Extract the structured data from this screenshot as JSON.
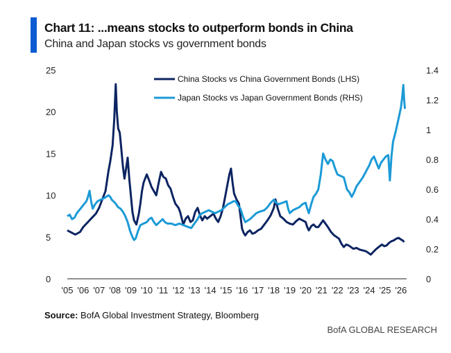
{
  "header": {
    "title": "Chart 11: ...means stocks to outperform bonds in China",
    "subtitle": "China and Japan stocks vs government bonds",
    "accent_color": "#0b5bd3"
  },
  "footer": {
    "source_label": "Source:",
    "source_text": " BofA Global Investment Strategy, Bloomberg",
    "brand": "BofA GLOBAL RESEARCH"
  },
  "chart_data": {
    "type": "line",
    "title": "Chart 11: ...means stocks to outperform bonds in China",
    "subtitle": "China and Japan stocks vs government bonds",
    "xlabel": "",
    "ylabel_left": "",
    "ylabel_right": "",
    "x_ticks": [
      "'05",
      "'06",
      "'07",
      "'08",
      "'09",
      "'10",
      "'11",
      "'12",
      "'13",
      "'14",
      "'15",
      "'16",
      "'17",
      "'18",
      "'19",
      "'20",
      "'21",
      "'22",
      "'23",
      "'24",
      "'25",
      "'26"
    ],
    "x_range": [
      2005,
      2026.6
    ],
    "ylim_left": [
      0,
      25
    ],
    "yticks_left": [
      "0",
      "5",
      "10",
      "15",
      "20",
      "25"
    ],
    "ylim_right": [
      0,
      1.4
    ],
    "yticks_right": [
      "0",
      "0.2",
      "0.4",
      "0.6",
      "0.8",
      "1",
      "1.2",
      "1.4"
    ],
    "grid": false,
    "legend_position": "top-center",
    "series": [
      {
        "name": "China Stocks vs China Government Bonds (LHS)",
        "axis": "left",
        "color": "#0c2461",
        "points": [
          [
            2005,
            5.8
          ],
          [
            2005.3,
            5.5
          ],
          [
            2005.5,
            5.3
          ],
          [
            2005.8,
            5.6
          ],
          [
            2006,
            6.2
          ],
          [
            2006.3,
            6.8
          ],
          [
            2006.5,
            7.2
          ],
          [
            2006.8,
            7.8
          ],
          [
            2007,
            8.5
          ],
          [
            2007.2,
            9.5
          ],
          [
            2007.4,
            10.5
          ],
          [
            2007.6,
            13
          ],
          [
            2007.7,
            14
          ],
          [
            2007.85,
            16
          ],
          [
            2007.95,
            19
          ],
          [
            2008.05,
            23.3
          ],
          [
            2008.12,
            20
          ],
          [
            2008.2,
            18
          ],
          [
            2008.3,
            17.5
          ],
          [
            2008.4,
            15.5
          ],
          [
            2008.5,
            13.5
          ],
          [
            2008.6,
            12
          ],
          [
            2008.7,
            13.2
          ],
          [
            2008.8,
            14.5
          ],
          [
            2008.9,
            12
          ],
          [
            2009.0,
            10
          ],
          [
            2009.1,
            8
          ],
          [
            2009.2,
            7
          ],
          [
            2009.35,
            6.5
          ],
          [
            2009.5,
            7.8
          ],
          [
            2009.6,
            9
          ],
          [
            2009.7,
            10.5
          ],
          [
            2009.8,
            11.5
          ],
          [
            2010.0,
            12.5
          ],
          [
            2010.15,
            11.8
          ],
          [
            2010.3,
            11
          ],
          [
            2010.45,
            10.5
          ],
          [
            2010.6,
            10
          ],
          [
            2010.75,
            11.5
          ],
          [
            2010.9,
            12.8
          ],
          [
            2011.05,
            12.2
          ],
          [
            2011.2,
            12
          ],
          [
            2011.35,
            11.2
          ],
          [
            2011.5,
            10.8
          ],
          [
            2011.65,
            9.8
          ],
          [
            2011.8,
            9
          ],
          [
            2012.0,
            8.5
          ],
          [
            2012.1,
            8
          ],
          [
            2012.3,
            6.5
          ],
          [
            2012.45,
            7.2
          ],
          [
            2012.6,
            7.5
          ],
          [
            2012.75,
            6.8
          ],
          [
            2012.9,
            7
          ],
          [
            2013.05,
            8
          ],
          [
            2013.2,
            8.5
          ],
          [
            2013.35,
            7.6
          ],
          [
            2013.5,
            7
          ],
          [
            2013.65,
            7.5
          ],
          [
            2013.8,
            7.2
          ],
          [
            2014.0,
            7.5
          ],
          [
            2014.2,
            7.8
          ],
          [
            2014.35,
            7.2
          ],
          [
            2014.5,
            6.8
          ],
          [
            2014.65,
            7.5
          ],
          [
            2014.8,
            8.5
          ],
          [
            2014.95,
            10
          ],
          [
            2015.1,
            11.5
          ],
          [
            2015.2,
            12.5
          ],
          [
            2015.3,
            13.2
          ],
          [
            2015.4,
            11.5
          ],
          [
            2015.5,
            10.2
          ],
          [
            2015.65,
            9.5
          ],
          [
            2015.8,
            9
          ],
          [
            2015.9,
            7.5
          ],
          [
            2016.0,
            6
          ],
          [
            2016.1,
            5.5
          ],
          [
            2016.2,
            5.2
          ],
          [
            2016.35,
            5.6
          ],
          [
            2016.5,
            5.8
          ],
          [
            2016.65,
            5.4
          ],
          [
            2016.8,
            5.5
          ],
          [
            2017.0,
            5.8
          ],
          [
            2017.2,
            6
          ],
          [
            2017.4,
            6.5
          ],
          [
            2017.6,
            7
          ],
          [
            2017.8,
            7.6
          ],
          [
            2018.0,
            8.5
          ],
          [
            2018.1,
            9.5
          ],
          [
            2018.25,
            8.4
          ],
          [
            2018.4,
            7.5
          ],
          [
            2018.6,
            7.2
          ],
          [
            2018.8,
            6.8
          ],
          [
            2019.0,
            6.6
          ],
          [
            2019.2,
            6.5
          ],
          [
            2019.4,
            6.9
          ],
          [
            2019.6,
            7.2
          ],
          [
            2019.8,
            7
          ],
          [
            2020.0,
            6.8
          ],
          [
            2020.1,
            6.2
          ],
          [
            2020.2,
            5.8
          ],
          [
            2020.35,
            6.3
          ],
          [
            2020.5,
            6.5
          ],
          [
            2020.65,
            6.2
          ],
          [
            2020.8,
            6.2
          ],
          [
            2020.95,
            6.6
          ],
          [
            2021.1,
            7
          ],
          [
            2021.25,
            6.6
          ],
          [
            2021.4,
            6.2
          ],
          [
            2021.6,
            5.6
          ],
          [
            2021.8,
            5.2
          ],
          [
            2021.95,
            5
          ],
          [
            2022.1,
            4.8
          ],
          [
            2022.25,
            4.2
          ],
          [
            2022.4,
            3.8
          ],
          [
            2022.55,
            4.1
          ],
          [
            2022.7,
            4.0
          ],
          [
            2022.85,
            3.8
          ],
          [
            2023.0,
            3.6
          ],
          [
            2023.2,
            3.7
          ],
          [
            2023.4,
            3.5
          ],
          [
            2023.6,
            3.4
          ],
          [
            2023.8,
            3.3
          ],
          [
            2023.95,
            3.1
          ],
          [
            2024.1,
            2.9
          ],
          [
            2024.25,
            3.2
          ],
          [
            2024.4,
            3.5
          ],
          [
            2024.6,
            3.8
          ],
          [
            2024.8,
            4.1
          ],
          [
            2024.95,
            3.9
          ],
          [
            2025.1,
            4.0
          ],
          [
            2025.25,
            4.3
          ],
          [
            2025.4,
            4.5
          ],
          [
            2025.55,
            4.6
          ],
          [
            2025.7,
            4.8
          ],
          [
            2025.85,
            4.9
          ],
          [
            2026.0,
            4.7
          ],
          [
            2026.1,
            4.6
          ],
          [
            2026.2,
            4.4
          ]
        ]
      },
      {
        "name": "Japan Stocks vs Japan Government Bonds (RHS)",
        "axis": "right",
        "color": "#1b9ad6",
        "points": [
          [
            2005,
            0.42
          ],
          [
            2005.15,
            0.43
          ],
          [
            2005.3,
            0.4
          ],
          [
            2005.45,
            0.41
          ],
          [
            2005.6,
            0.44
          ],
          [
            2005.75,
            0.46
          ],
          [
            2005.9,
            0.48
          ],
          [
            2006.05,
            0.5
          ],
          [
            2006.2,
            0.52
          ],
          [
            2006.3,
            0.55
          ],
          [
            2006.4,
            0.59
          ],
          [
            2006.5,
            0.52
          ],
          [
            2006.6,
            0.47
          ],
          [
            2006.75,
            0.5
          ],
          [
            2006.9,
            0.52
          ],
          [
            2007.1,
            0.53
          ],
          [
            2007.3,
            0.54
          ],
          [
            2007.45,
            0.55
          ],
          [
            2007.6,
            0.56
          ],
          [
            2007.7,
            0.55
          ],
          [
            2007.8,
            0.53
          ],
          [
            2008.0,
            0.51
          ],
          [
            2008.2,
            0.48
          ],
          [
            2008.35,
            0.47
          ],
          [
            2008.5,
            0.45
          ],
          [
            2008.65,
            0.42
          ],
          [
            2008.8,
            0.38
          ],
          [
            2008.95,
            0.32
          ],
          [
            2009.1,
            0.28
          ],
          [
            2009.2,
            0.26
          ],
          [
            2009.3,
            0.27
          ],
          [
            2009.45,
            0.32
          ],
          [
            2009.6,
            0.36
          ],
          [
            2009.8,
            0.37
          ],
          [
            2010.0,
            0.38
          ],
          [
            2010.15,
            0.4
          ],
          [
            2010.3,
            0.41
          ],
          [
            2010.45,
            0.38
          ],
          [
            2010.6,
            0.36
          ],
          [
            2010.8,
            0.38
          ],
          [
            2011.0,
            0.4
          ],
          [
            2011.15,
            0.38
          ],
          [
            2011.3,
            0.37
          ],
          [
            2011.55,
            0.37
          ],
          [
            2011.8,
            0.36
          ],
          [
            2012.05,
            0.37
          ],
          [
            2012.3,
            0.36
          ],
          [
            2012.55,
            0.35
          ],
          [
            2012.8,
            0.34
          ],
          [
            2013.0,
            0.37
          ],
          [
            2013.2,
            0.4
          ],
          [
            2013.35,
            0.43
          ],
          [
            2013.5,
            0.44
          ],
          [
            2013.7,
            0.45
          ],
          [
            2013.9,
            0.46
          ],
          [
            2014.1,
            0.45
          ],
          [
            2014.3,
            0.44
          ],
          [
            2014.5,
            0.45
          ],
          [
            2014.7,
            0.46
          ],
          [
            2014.9,
            0.48
          ],
          [
            2015.1,
            0.5
          ],
          [
            2015.3,
            0.51
          ],
          [
            2015.45,
            0.52
          ],
          [
            2015.6,
            0.52
          ],
          [
            2015.75,
            0.49
          ],
          [
            2015.9,
            0.47
          ],
          [
            2016.05,
            0.42
          ],
          [
            2016.2,
            0.38
          ],
          [
            2016.35,
            0.39
          ],
          [
            2016.5,
            0.4
          ],
          [
            2016.7,
            0.42
          ],
          [
            2016.9,
            0.44
          ],
          [
            2017.1,
            0.45
          ],
          [
            2017.4,
            0.46
          ],
          [
            2017.6,
            0.48
          ],
          [
            2017.8,
            0.51
          ],
          [
            2017.9,
            0.52
          ],
          [
            2018.0,
            0.53
          ],
          [
            2018.15,
            0.51
          ],
          [
            2018.3,
            0.5
          ],
          [
            2018.55,
            0.51
          ],
          [
            2018.8,
            0.52
          ],
          [
            2018.9,
            0.47
          ],
          [
            2019.0,
            0.44
          ],
          [
            2019.2,
            0.46
          ],
          [
            2019.4,
            0.47
          ],
          [
            2019.6,
            0.48
          ],
          [
            2019.8,
            0.5
          ],
          [
            2020.0,
            0.51
          ],
          [
            2020.1,
            0.47
          ],
          [
            2020.2,
            0.44
          ],
          [
            2020.35,
            0.5
          ],
          [
            2020.5,
            0.55
          ],
          [
            2020.65,
            0.57
          ],
          [
            2020.8,
            0.6
          ],
          [
            2020.95,
            0.7
          ],
          [
            2021.1,
            0.84
          ],
          [
            2021.25,
            0.8
          ],
          [
            2021.4,
            0.77
          ],
          [
            2021.55,
            0.8
          ],
          [
            2021.7,
            0.79
          ],
          [
            2021.85,
            0.74
          ],
          [
            2022.0,
            0.7
          ],
          [
            2022.2,
            0.69
          ],
          [
            2022.4,
            0.68
          ],
          [
            2022.5,
            0.64
          ],
          [
            2022.6,
            0.6
          ],
          [
            2022.75,
            0.58
          ],
          [
            2022.9,
            0.55
          ],
          [
            2023.05,
            0.58
          ],
          [
            2023.2,
            0.62
          ],
          [
            2023.4,
            0.65
          ],
          [
            2023.6,
            0.68
          ],
          [
            2023.8,
            0.72
          ],
          [
            2024.0,
            0.76
          ],
          [
            2024.15,
            0.8
          ],
          [
            2024.3,
            0.82
          ],
          [
            2024.45,
            0.78
          ],
          [
            2024.6,
            0.74
          ],
          [
            2024.75,
            0.78
          ],
          [
            2024.9,
            0.8
          ],
          [
            2025.05,
            0.82
          ],
          [
            2025.2,
            0.83
          ],
          [
            2025.25,
            0.75
          ],
          [
            2025.3,
            0.66
          ],
          [
            2025.4,
            0.82
          ],
          [
            2025.5,
            0.92
          ],
          [
            2025.65,
            0.98
          ],
          [
            2025.8,
            1.05
          ],
          [
            2025.9,
            1.1
          ],
          [
            2026.0,
            1.15
          ],
          [
            2026.08,
            1.22
          ],
          [
            2026.15,
            1.3
          ],
          [
            2026.2,
            1.2
          ],
          [
            2026.25,
            1.14
          ]
        ]
      }
    ]
  }
}
